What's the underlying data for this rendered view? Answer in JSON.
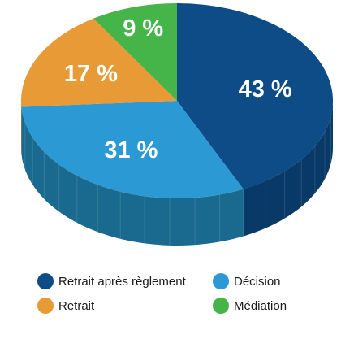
{
  "chart_data": {
    "type": "pie",
    "style": "3d",
    "slices": [
      {
        "name": "Retrait après règlement",
        "value": 43,
        "label": "43 %",
        "color": "#0d4c86",
        "side_color": "#093a67"
      },
      {
        "name": "Décision",
        "value": 31,
        "label": "31 %",
        "color": "#2b9ad4",
        "side_color": "#1a6a8f"
      },
      {
        "name": "Retrait",
        "value": 17,
        "label": "17 %",
        "color": "#e79a35",
        "side_color": "#b87422"
      },
      {
        "name": "Médiation",
        "value": 9,
        "label": "9 %",
        "color": "#46b549",
        "side_color": "#2f8a33"
      }
    ],
    "legend_position": "bottom"
  },
  "legend": {
    "items": [
      {
        "label": "Retrait après règlement",
        "color": "#0d4c86"
      },
      {
        "label": "Décision",
        "color": "#2b9ad4"
      },
      {
        "label": "Retrait",
        "color": "#e79a35"
      },
      {
        "label": "Médiation",
        "color": "#46b549"
      }
    ]
  }
}
